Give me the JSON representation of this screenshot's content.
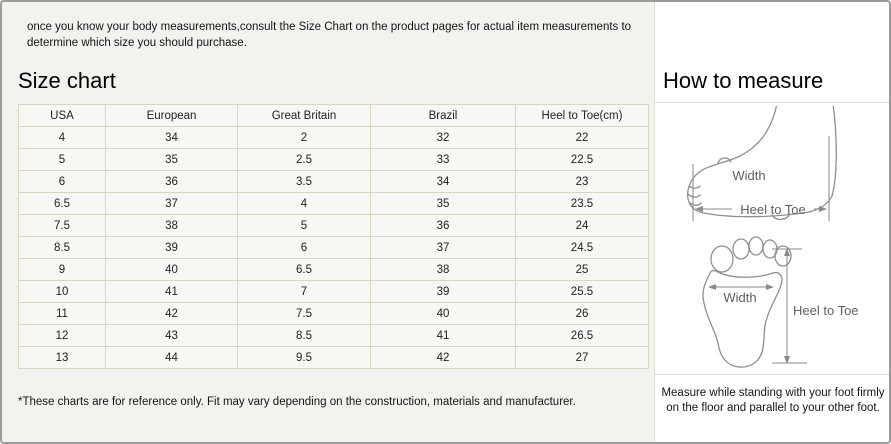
{
  "page": {
    "intro_text": "once you know your body measurements,consult the Size Chart on the product pages for actual item measurements to determine which size you should purchase.",
    "left_title": "Size chart",
    "right_title": "How to measure",
    "footnote": "*These charts are for reference only. Fit may vary depending on the construction, materials and manufacturer.",
    "measure_note": "Measure while standing with your foot firmly on the floor and parallel to your other foot."
  },
  "size_table": {
    "columns": [
      "USA",
      "European",
      "Great Britain",
      "Brazil",
      "Heel to Toe(cm)"
    ],
    "rows": [
      [
        "4",
        "34",
        "2",
        "32",
        "22"
      ],
      [
        "5",
        "35",
        "2.5",
        "33",
        "22.5"
      ],
      [
        "6",
        "36",
        "3.5",
        "34",
        "23"
      ],
      [
        "6.5",
        "37",
        "4",
        "35",
        "23.5"
      ],
      [
        "7.5",
        "38",
        "5",
        "36",
        "24"
      ],
      [
        "8.5",
        "39",
        "6",
        "37",
        "24.5"
      ],
      [
        "9",
        "40",
        "6.5",
        "38",
        "25"
      ],
      [
        "10",
        "41",
        "7",
        "39",
        "25.5"
      ],
      [
        "11",
        "42",
        "7.5",
        "40",
        "26"
      ],
      [
        "12",
        "43",
        "8.5",
        "41",
        "26.5"
      ],
      [
        "13",
        "44",
        "9.5",
        "42",
        "27"
      ]
    ]
  },
  "diagrams": {
    "side_view": {
      "width_label": "Width",
      "length_label": "Heel to Toe"
    },
    "sole_view": {
      "width_label": "Width",
      "length_label": "Heel to Toe"
    }
  },
  "colors": {
    "outer_border": "#9b9b9b",
    "left_bg": "#f2f2ef",
    "right_bg": "#ffffff",
    "table_border": "#d9d6bd",
    "cell_bg": "#f7f7f3",
    "divider": "#dddcd6",
    "diagram_stroke": "#8e8e8e",
    "text": "#1b1b1b"
  }
}
